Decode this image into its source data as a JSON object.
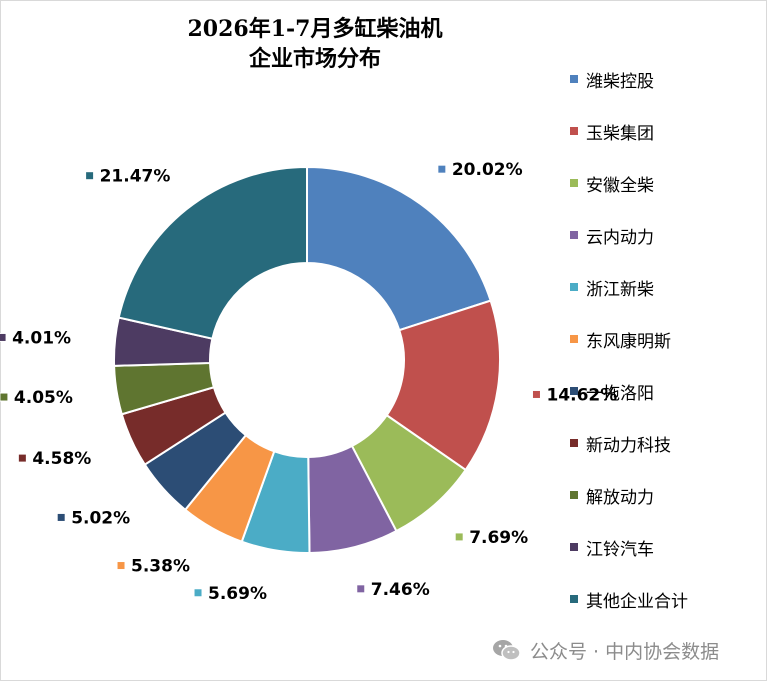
{
  "chart_data": {
    "type": "donut",
    "title_lines": [
      "2026年1-7月多缸柴油机",
      "企业市场分布"
    ],
    "legend_position": "right",
    "categories": [
      "潍柴控股",
      "玉柴集团",
      "安徽全柴",
      "云内动力",
      "浙江新柴",
      "东风康明斯",
      "一拖洛阳",
      "新动力科技",
      "解放动力",
      "江铃汽车",
      "其他企业合计"
    ],
    "values": [
      20.02,
      14.62,
      7.69,
      7.46,
      5.69,
      5.38,
      5.02,
      4.58,
      4.05,
      4.01,
      21.47
    ],
    "labels": [
      "20.02%",
      "14.62%",
      "7.69%",
      "7.46%",
      "5.69%",
      "5.38%",
      "5.02%",
      "4.58%",
      "4.05%",
      "4.01%",
      "21.47%"
    ],
    "colors": [
      "#4f81bd",
      "#c0504d",
      "#9bbb59",
      "#8064a2",
      "#4bacc6",
      "#f79646",
      "#2c4d75",
      "#772c2a",
      "#5f7530",
      "#4d3b62",
      "#276a7c"
    ]
  },
  "watermark": {
    "text": "公众号 · 中内协会数据",
    "icon": "wechat-icon"
  }
}
